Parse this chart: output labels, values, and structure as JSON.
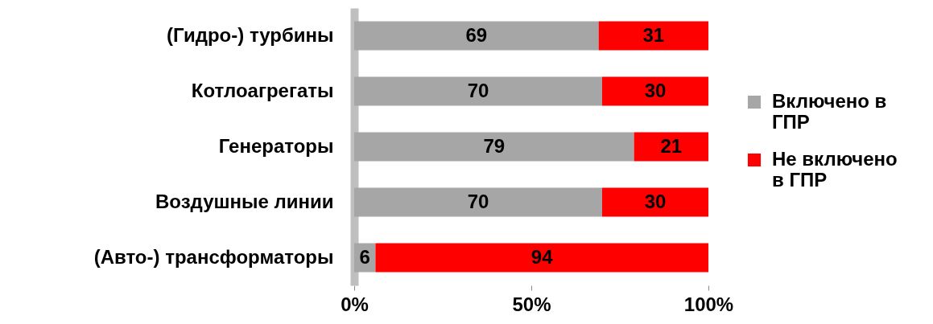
{
  "chart_data": {
    "type": "bar",
    "orientation": "horizontal",
    "stacked": true,
    "categories": [
      "(Гидро-) турбины",
      "Котлоагрегаты",
      "Генераторы",
      "Воздушные линии",
      "(Авто-) трансформаторы"
    ],
    "series": [
      {
        "name": "Включено в ГПР",
        "color": "#a6a6a6",
        "values": [
          69,
          70,
          79,
          70,
          6
        ]
      },
      {
        "name": "Не включено в ГПР",
        "color": "#ff0000",
        "values": [
          31,
          30,
          21,
          30,
          94
        ]
      }
    ],
    "xlim": [
      0,
      100
    ],
    "xticks": [
      {
        "value": 0,
        "label": "0%"
      },
      {
        "value": 50,
        "label": "50%"
      },
      {
        "value": 100,
        "label": "100%"
      }
    ],
    "data_labels": true,
    "legend": "right",
    "grid": false
  }
}
